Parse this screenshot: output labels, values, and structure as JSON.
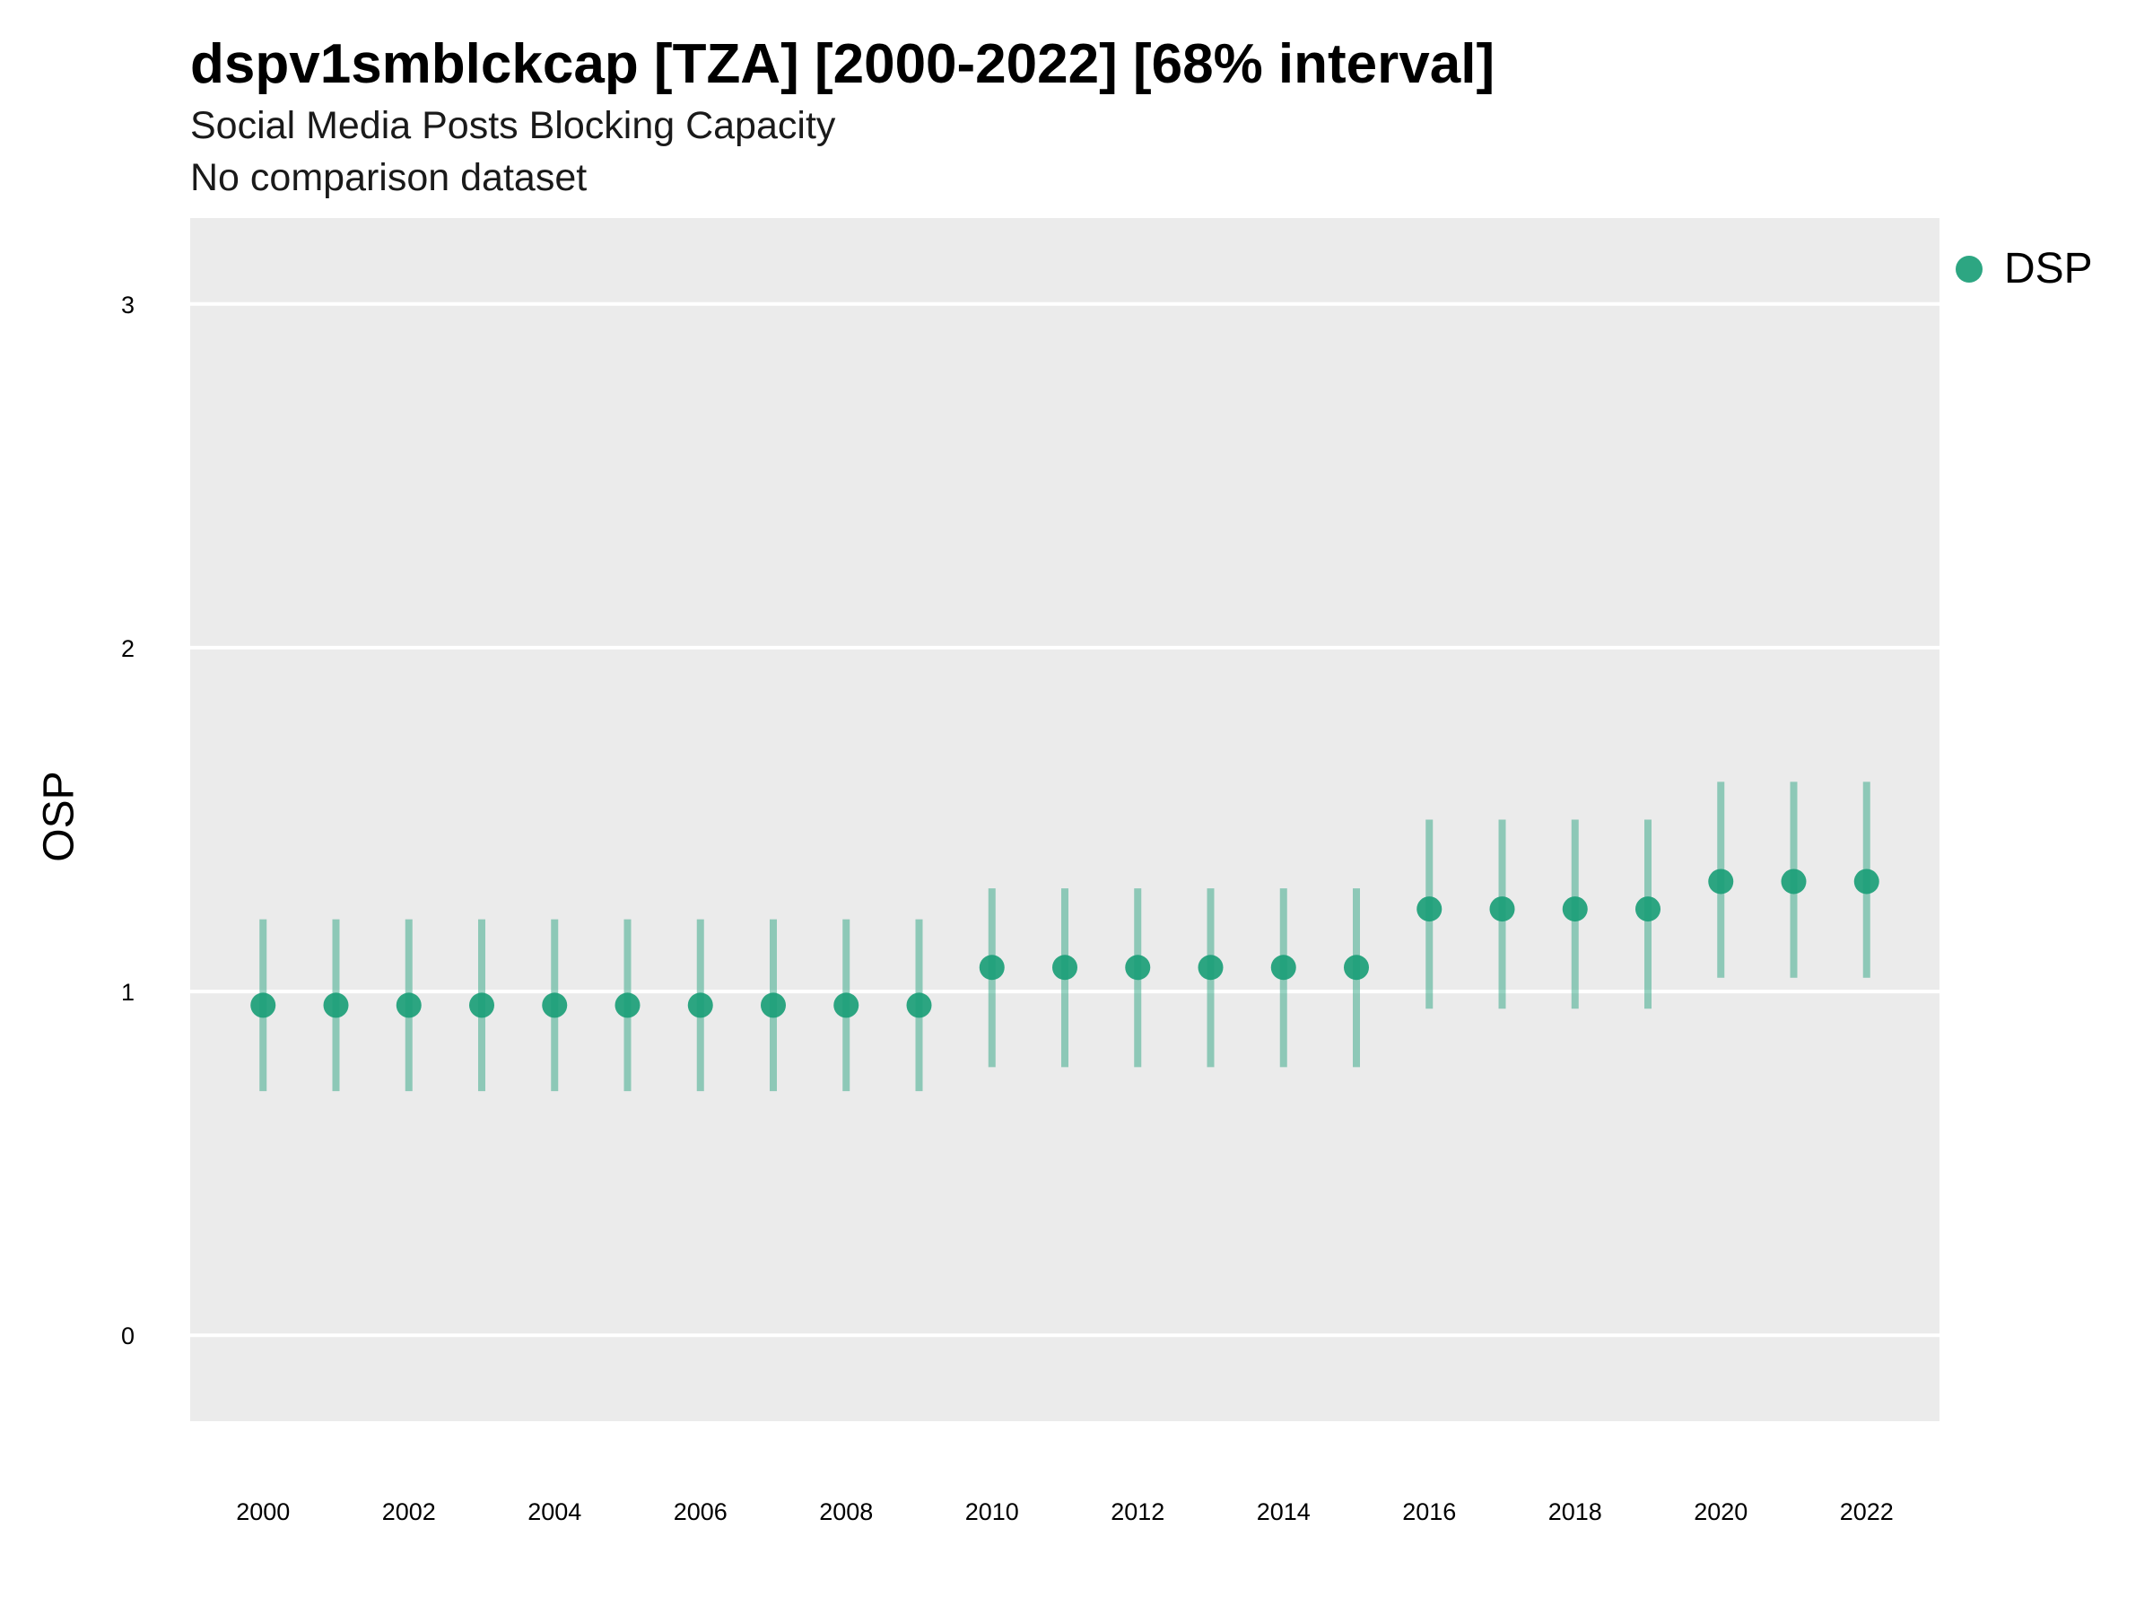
{
  "chart_data": {
    "type": "scatter",
    "title": "dspv1smblckcap [TZA] [2000-2022] [68% interval]",
    "subtitle": "Social Media Posts Blocking Capacity",
    "caption": "No comparison dataset",
    "xlabel": "",
    "ylabel": "OSP",
    "xlim": [
      1999,
      2023
    ],
    "ylim": [
      -0.25,
      3.25
    ],
    "x_ticks": [
      "2000",
      "2002",
      "2004",
      "2006",
      "2008",
      "2010",
      "2012",
      "2014",
      "2016",
      "2018",
      "2020",
      "2022"
    ],
    "y_ticks": [
      "0",
      "1",
      "2",
      "3"
    ],
    "grid": true,
    "legend_position": "top-right",
    "colors": {
      "series": "#1b9e77",
      "panel": "#ebebeb",
      "grid": "#ffffff"
    },
    "series": [
      {
        "name": "DSP",
        "x": [
          2000,
          2001,
          2002,
          2003,
          2004,
          2005,
          2006,
          2007,
          2008,
          2009,
          2010,
          2011,
          2012,
          2013,
          2014,
          2015,
          2016,
          2017,
          2018,
          2019,
          2020,
          2021,
          2022
        ],
        "y": [
          0.96,
          0.96,
          0.96,
          0.96,
          0.96,
          0.96,
          0.96,
          0.96,
          0.96,
          0.96,
          1.07,
          1.07,
          1.07,
          1.07,
          1.07,
          1.07,
          1.24,
          1.24,
          1.24,
          1.24,
          1.32,
          1.32,
          1.32
        ],
        "lower": [
          0.71,
          0.71,
          0.71,
          0.71,
          0.71,
          0.71,
          0.71,
          0.71,
          0.71,
          0.71,
          0.78,
          0.78,
          0.78,
          0.78,
          0.78,
          0.78,
          0.95,
          0.95,
          0.95,
          0.95,
          1.04,
          1.04,
          1.04
        ],
        "upper": [
          1.21,
          1.21,
          1.21,
          1.21,
          1.21,
          1.21,
          1.21,
          1.21,
          1.21,
          1.21,
          1.3,
          1.3,
          1.3,
          1.3,
          1.3,
          1.3,
          1.5,
          1.5,
          1.5,
          1.5,
          1.61,
          1.61,
          1.61
        ]
      }
    ]
  }
}
